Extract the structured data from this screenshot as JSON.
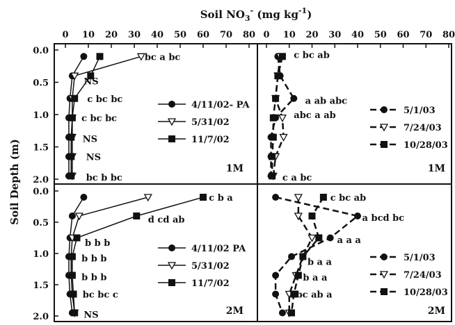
{
  "chart_data": {
    "type": "line",
    "title": "Soil NO3- (mg kg-1)",
    "title_parts": {
      "pre": "Soil NO",
      "sub": "3",
      "sup": "-",
      "post": " (mg kg",
      "post_sup": "-1",
      "close": ")"
    },
    "xlabel": "Soil NO3- (mg kg-1)",
    "ylabel": "Soil Depth (m)",
    "xlim": [
      0,
      80
    ],
    "ylim": [
      0.0,
      2.0
    ],
    "y_inverted": true,
    "left_x_ticks": [
      "0",
      "10",
      "20",
      "30",
      "40",
      "50",
      "60",
      "70",
      "80"
    ],
    "right_x_ticks": [
      "0",
      "10",
      "20",
      "30",
      "40",
      "50",
      "60",
      "70",
      "80"
    ],
    "top_y_ticks": [
      "0.0",
      "0.5",
      "1.0",
      "1.5",
      "2.0"
    ],
    "bottom_y_ticks": [
      "0.0",
      "0.5",
      "1.0",
      "1.5",
      "2.0"
    ],
    "panels": [
      {
        "name": "top-left",
        "tag": "1M",
        "linestyle": "solid",
        "series": [
          {
            "name": "4/11/02- PA",
            "marker": "circle",
            "x": [
              8,
              3,
              2,
              1.5,
              1.5,
              1.5,
              1.5
            ],
            "y": [
              0.1,
              0.4,
              0.75,
              1.05,
              1.35,
              1.65,
              1.95
            ]
          },
          {
            "name": "5/31/02",
            "marker": "triangle-down",
            "x": [
              33,
              4,
              3,
              3,
              3,
              3,
              3
            ],
            "y": [
              0.1,
              0.4,
              0.75,
              1.05,
              1.35,
              1.65,
              1.95
            ]
          },
          {
            "name": "11/7/02",
            "marker": "square",
            "x": [
              15,
              11,
              4,
              3,
              2.5,
              2.5,
              2.5
            ],
            "y": [
              0.1,
              0.4,
              0.75,
              1.05,
              1.35,
              1.65,
              1.95
            ]
          }
        ],
        "annotations": [
          {
            "text": "bc a bc",
            "x": 34.5,
            "y": 0.1
          },
          {
            "text": "NS",
            "x": 8,
            "y": 0.48
          },
          {
            "text": "c bc bc",
            "x": 9.5,
            "y": 0.75
          },
          {
            "text": "c bc bc",
            "x": 7,
            "y": 1.05
          },
          {
            "text": "NS",
            "x": 7.5,
            "y": 1.37
          },
          {
            "text": "NS",
            "x": 9,
            "y": 1.65
          },
          {
            "text": "bc b bc",
            "x": 9,
            "y": 1.97
          }
        ]
      },
      {
        "name": "top-right",
        "tag": "1M",
        "linestyle": "dashed",
        "series": [
          {
            "name": "5/1/03",
            "marker": "circle",
            "x": [
              5,
              6,
              12,
              4,
              2,
              2,
              2
            ],
            "y": [
              0.1,
              0.4,
              0.75,
              1.05,
              1.35,
              1.65,
              1.95
            ]
          },
          {
            "name": "7/24/03",
            "marker": "triangle-down",
            "x": [
              6,
              5,
              4,
              7,
              7.5,
              4,
              3
            ],
            "y": [
              0.1,
              0.4,
              0.75,
              1.05,
              1.35,
              1.65,
              1.95
            ]
          },
          {
            "name": "10/28/03",
            "marker": "square",
            "x": [
              7,
              5,
              4,
              3,
              3,
              2.5,
              2.5
            ],
            "y": [
              0.1,
              0.4,
              0.75,
              1.05,
              1.35,
              1.65,
              1.95
            ]
          }
        ],
        "annotations": [
          {
            "text": "c bc ab",
            "x": 12,
            "y": 0.07
          },
          {
            "text": "a ab abc",
            "x": 17,
            "y": 0.78
          },
          {
            "text": "abc a ab",
            "x": 12,
            "y": 1.0
          },
          {
            "text": "c a bc",
            "x": 7,
            "y": 1.97
          }
        ]
      },
      {
        "name": "bottom-left",
        "tag": "2M",
        "linestyle": "solid",
        "series": [
          {
            "name": "4/11/02 PA",
            "marker": "circle",
            "x": [
              8,
              3,
              2,
              1.5,
              1.5,
              2,
              3
            ],
            "y": [
              0.1,
              0.4,
              0.75,
              1.05,
              1.35,
              1.65,
              1.95
            ]
          },
          {
            "name": "5/31/02",
            "marker": "triangle-down",
            "x": [
              36,
              6,
              3,
              2.5,
              2.5,
              3,
              4
            ],
            "y": [
              0.1,
              0.4,
              0.75,
              1.05,
              1.35,
              1.65,
              1.95
            ]
          },
          {
            "name": "11/7/02",
            "marker": "square",
            "x": [
              60,
              31,
              5,
              3,
              3,
              3.5,
              4
            ],
            "y": [
              0.1,
              0.4,
              0.75,
              1.05,
              1.35,
              1.65,
              1.95
            ]
          }
        ],
        "annotations": [
          {
            "text": "c b a",
            "x": 62.5,
            "y": 0.1
          },
          {
            "text": "d cd ab",
            "x": 36,
            "y": 0.45
          },
          {
            "text": "b b b",
            "x": 8.5,
            "y": 0.82
          },
          {
            "text": "b b b",
            "x": 7,
            "y": 1.07
          },
          {
            "text": "b b b",
            "x": 7,
            "y": 1.37
          },
          {
            "text": "bc bc c",
            "x": 7.5,
            "y": 1.65
          },
          {
            "text": "NS",
            "x": 8,
            "y": 1.97
          }
        ]
      },
      {
        "name": "bottom-right",
        "tag": "2M",
        "linestyle": "dashed",
        "series": [
          {
            "name": "5/1/03",
            "marker": "circle",
            "x": [
              4,
              40,
              28,
              11,
              4,
              4,
              7
            ],
            "y": [
              0.1,
              0.4,
              0.75,
              1.05,
              1.35,
              1.65,
              1.95
            ]
          },
          {
            "name": "7/24/03",
            "marker": "triangle-down",
            "x": [
              14,
              14,
              20,
              16,
              13,
              10,
              10
            ],
            "y": [
              0.1,
              0.4,
              0.75,
              1.05,
              1.35,
              1.65,
              1.95
            ]
          },
          {
            "name": "10/28/03",
            "marker": "square",
            "x": [
              25,
              20,
              23,
              16,
              14,
              12,
              11
            ],
            "y": [
              0.1,
              0.4,
              0.75,
              1.05,
              1.35,
              1.65,
              1.95
            ]
          }
        ],
        "annotations": [
          {
            "text": "c bc ab",
            "x": 28,
            "y": 0.1
          },
          {
            "text": "a bcd bc",
            "x": 42,
            "y": 0.42
          },
          {
            "text": "a a a",
            "x": 31,
            "y": 0.78
          },
          {
            "text": "b a a",
            "x": 18,
            "y": 1.13
          },
          {
            "text": "b a a",
            "x": 16,
            "y": 1.38
          },
          {
            "text": "bc ab a",
            "x": 13,
            "y": 1.65
          }
        ]
      }
    ]
  }
}
